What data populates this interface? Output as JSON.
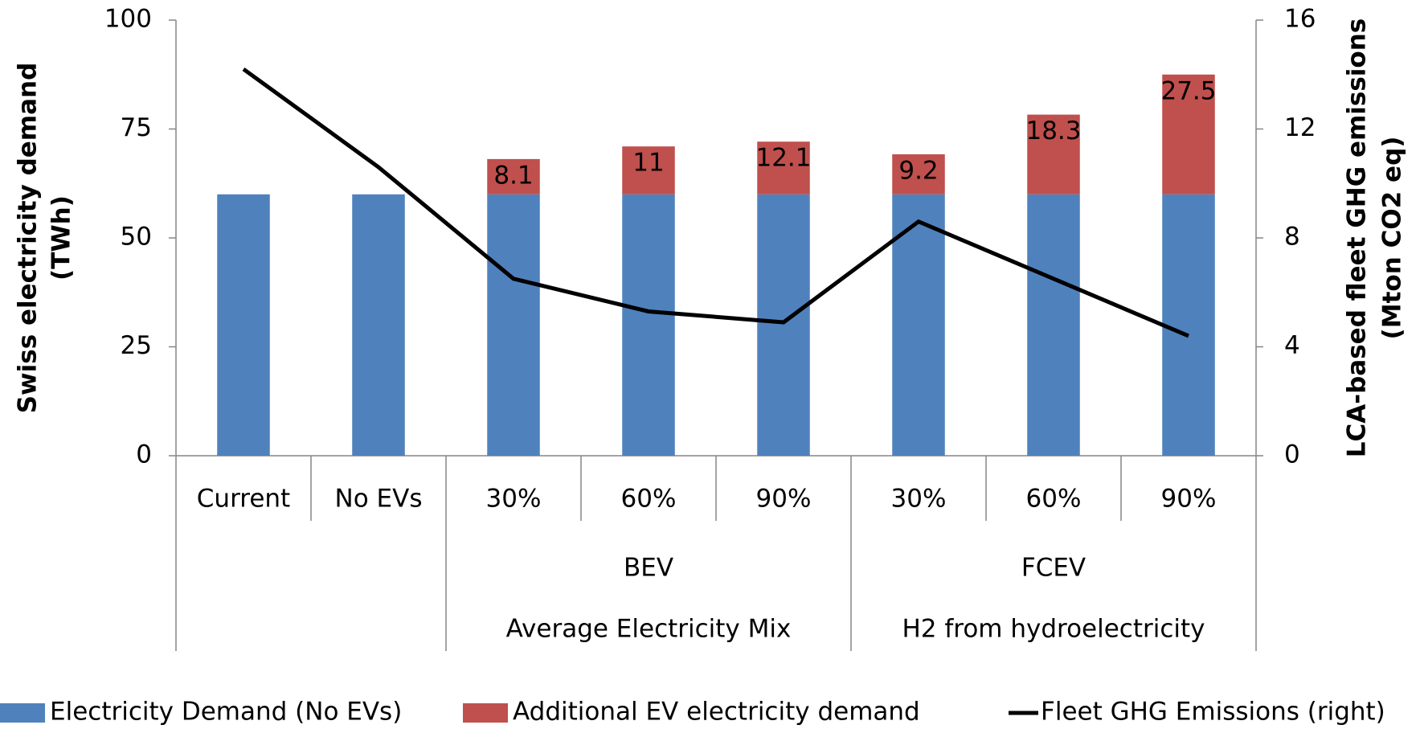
{
  "chart_data": {
    "type": "bar",
    "stacked": true,
    "categories": [
      "Current",
      "No EVs",
      "30%",
      "60%",
      "90%",
      "30%",
      "60%",
      "90%"
    ],
    "group_level1": [
      null,
      null,
      "BEV",
      "BEV",
      "BEV",
      "FCEV",
      "FCEV",
      "FCEV"
    ],
    "group_level2": [
      null,
      null,
      "Average Electricity Mix",
      "Average Electricity Mix",
      "Average Electricity Mix",
      "H2 from hydroelectricity",
      "H2 from hydroelectricity",
      "H2 from hydroelectricity"
    ],
    "y_label": [
      "Swiss electricity demand",
      "(TWh)"
    ],
    "y2_label": [
      "LCA-based fleet GHG emissions",
      "(Mton CO2 eq)"
    ],
    "ylim": [
      0,
      100
    ],
    "yticks": [
      0,
      25,
      50,
      75,
      100
    ],
    "y2lim": [
      0,
      16
    ],
    "y2ticks": [
      0,
      4,
      8,
      12,
      16
    ],
    "series": [
      {
        "name": "Electricity Demand (No EVs)",
        "type": "bar",
        "color": "#4f81bd",
        "values": [
          60,
          60,
          60,
          60,
          60,
          60,
          60,
          60
        ]
      },
      {
        "name": "Additional EV electricity demand",
        "type": "bar",
        "color": "#c0504d",
        "values": [
          null,
          null,
          8.1,
          11,
          12.1,
          9.2,
          18.3,
          27.5
        ],
        "show_labels": true
      },
      {
        "name": "Fleet GHG Emissions (right)",
        "type": "line",
        "axis": "y2",
        "color": "#000000",
        "values": [
          14.2,
          10.6,
          6.5,
          5.3,
          4.9,
          8.6,
          6.5,
          4.4
        ]
      }
    ]
  }
}
